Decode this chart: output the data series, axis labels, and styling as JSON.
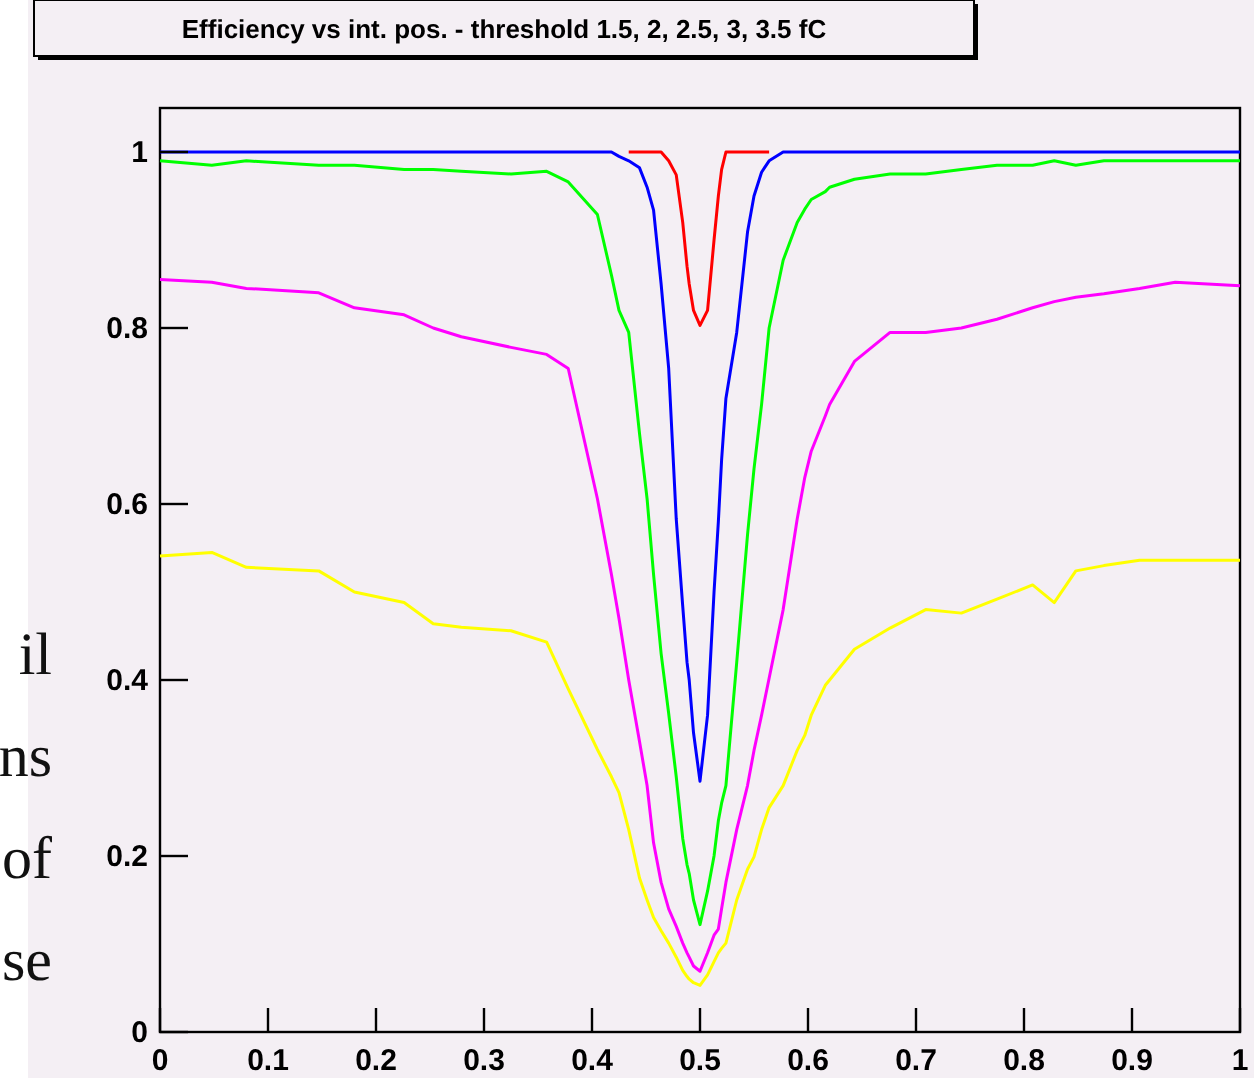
{
  "chart_data": {
    "type": "line",
    "title": "Efficiency vs int. pos. - threshold 1.5, 2, 2.5, 3, 3.5 fC",
    "x": [
      0,
      0.048,
      0.08,
      0.147,
      0.18,
      0.226,
      0.253,
      0.279,
      0.325,
      0.358,
      0.378,
      0.405,
      0.418,
      0.425,
      0.434,
      0.444,
      0.451,
      0.457,
      0.464,
      0.471,
      0.478,
      0.484,
      0.488,
      0.49,
      0.494,
      0.5,
      0.507,
      0.513,
      0.517,
      0.52,
      0.524,
      0.534,
      0.544,
      0.55,
      0.557,
      0.564,
      0.577,
      0.59,
      0.597,
      0.603,
      0.616,
      0.62,
      0.643,
      0.676,
      0.709,
      0.742,
      0.775,
      0.808,
      0.828,
      0.848,
      0.874,
      0.907,
      0.94,
      1
    ],
    "ylim": [
      0,
      1.05
    ],
    "yticks": [
      0,
      0.2,
      0.4,
      0.6,
      0.8,
      1
    ],
    "xlim": [
      0,
      1
    ],
    "xticks": [
      0,
      0.1,
      0.2,
      0.3,
      0.4,
      0.5,
      0.6,
      0.7,
      0.8,
      0.9,
      1
    ],
    "series": [
      {
        "color": "#ff0000",
        "values": [
          null,
          null,
          null,
          null,
          null,
          null,
          null,
          null,
          null,
          null,
          null,
          null,
          null,
          null,
          1,
          1,
          1,
          1,
          1,
          0.99,
          0.974,
          0.92,
          0.87,
          0.85,
          0.82,
          0.803,
          0.82,
          0.9,
          0.95,
          0.98,
          1,
          1,
          1,
          1,
          1,
          1,
          null,
          null,
          null,
          null,
          null,
          null,
          null,
          null,
          null,
          null,
          null,
          null,
          null,
          null,
          null,
          null,
          null,
          null
        ]
      },
      {
        "color": "#0000ff",
        "values": [
          1,
          1,
          1,
          1,
          1,
          1,
          1,
          1,
          1,
          1,
          1,
          1,
          1,
          0.995,
          0.99,
          0.982,
          0.96,
          0.934,
          0.85,
          0.754,
          0.583,
          0.484,
          0.42,
          0.4,
          0.34,
          0.285,
          0.36,
          0.5,
          0.58,
          0.65,
          0.72,
          0.795,
          0.909,
          0.95,
          0.977,
          0.99,
          1,
          1,
          1,
          1,
          1,
          1,
          1,
          1,
          1,
          1,
          1,
          1,
          1,
          1,
          1,
          1,
          1,
          1
        ]
      },
      {
        "color": "#00ff00",
        "values": [
          0.99,
          0.985,
          0.99,
          0.985,
          0.985,
          0.98,
          0.98,
          0.978,
          0.975,
          0.978,
          0.966,
          0.929,
          0.86,
          0.82,
          0.795,
          0.68,
          0.606,
          0.52,
          0.43,
          0.362,
          0.29,
          0.22,
          0.19,
          0.18,
          0.15,
          0.122,
          0.16,
          0.2,
          0.24,
          0.26,
          0.28,
          0.42,
          0.565,
          0.64,
          0.713,
          0.8,
          0.877,
          0.92,
          0.935,
          0.946,
          0.955,
          0.96,
          0.969,
          0.975,
          0.975,
          0.98,
          0.985,
          0.985,
          0.99,
          0.985,
          0.99,
          0.99,
          0.99,
          0.99
        ]
      },
      {
        "color": "#ff00ff",
        "values": [
          0.855,
          0.852,
          0.845,
          0.84,
          0.823,
          0.815,
          0.8,
          0.79,
          0.778,
          0.77,
          0.754,
          0.606,
          0.52,
          0.47,
          0.4,
          0.33,
          0.28,
          0.215,
          0.17,
          0.14,
          0.12,
          0.101,
          0.09,
          0.085,
          0.075,
          0.069,
          0.09,
          0.11,
          0.117,
          0.14,
          0.17,
          0.23,
          0.28,
          0.32,
          0.36,
          0.402,
          0.48,
          0.583,
          0.63,
          0.66,
          0.7,
          0.713,
          0.762,
          0.795,
          0.795,
          0.8,
          0.81,
          0.823,
          0.83,
          0.835,
          0.839,
          0.845,
          0.852,
          0.848
        ]
      },
      {
        "color": "#ffff00",
        "values": [
          0.541,
          0.545,
          0.528,
          0.524,
          0.5,
          0.488,
          0.464,
          0.46,
          0.456,
          0.443,
          0.39,
          0.321,
          0.29,
          0.272,
          0.23,
          0.175,
          0.15,
          0.13,
          0.115,
          0.101,
          0.085,
          0.07,
          0.063,
          0.06,
          0.056,
          0.053,
          0.065,
          0.08,
          0.09,
          0.095,
          0.101,
          0.15,
          0.185,
          0.199,
          0.23,
          0.255,
          0.28,
          0.32,
          0.337,
          0.36,
          0.394,
          0.4,
          0.435,
          0.459,
          0.48,
          0.476,
          0.492,
          0.508,
          0.488,
          0.524,
          0.53,
          0.536,
          0.536,
          0.536
        ]
      }
    ],
    "annotations": [
      "il",
      "ns",
      "of",
      "se"
    ]
  }
}
